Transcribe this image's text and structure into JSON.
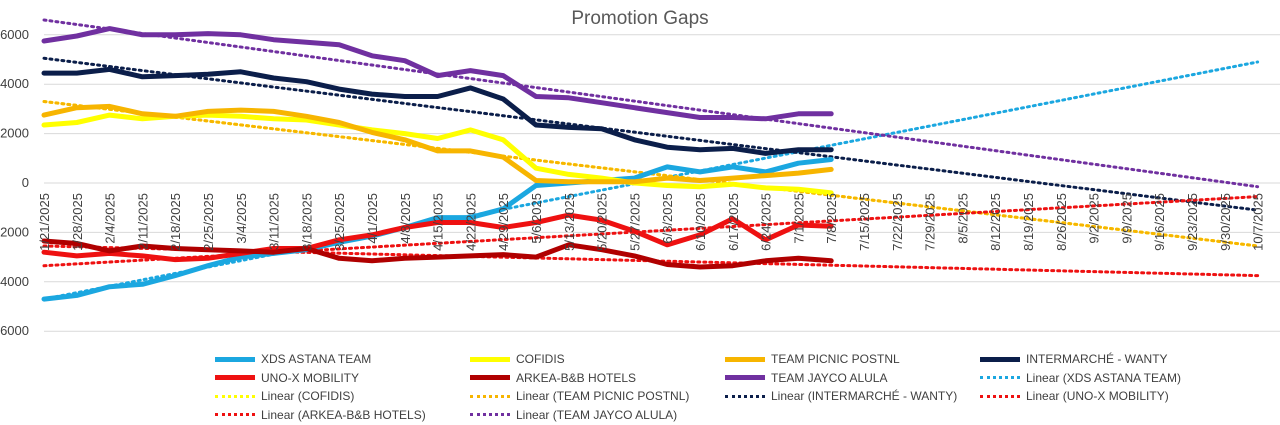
{
  "chart_data": {
    "type": "line",
    "title": "Promotion Gaps",
    "x_ticks": [
      "1/21/2025",
      "1/28/2025",
      "2/4/2025",
      "2/11/2025",
      "2/18/2025",
      "2/25/2025",
      "3/4/2025",
      "3/11/2025",
      "3/18/2025",
      "3/25/2025",
      "4/1/2025",
      "4/8/2025",
      "4/15/2025",
      "4/22/2025",
      "4/29/2025",
      "5/6/2025",
      "5/13/2025",
      "5/20/2025",
      "5/27/2025",
      "6/3/2025",
      "6/10/2025",
      "6/17/2025",
      "6/24/2025",
      "7/1/2025",
      "7/8/2025",
      "7/15/2025",
      "7/22/2025",
      "7/29/2025",
      "8/5/2025",
      "8/12/2025",
      "8/19/2025",
      "8/26/2025",
      "9/2/2025",
      "9/9/2025",
      "9/16/2025",
      "9/23/2025",
      "9/30/2025",
      "10/7/2025"
    ],
    "y_ticks": [
      "6000",
      "4000",
      "2000",
      "0",
      "2000",
      "4000",
      "6000"
    ],
    "y_tick_values": [
      6000,
      4000,
      2000,
      0,
      -2000,
      -4000,
      -6000
    ],
    "ylim": [
      -6000,
      6500
    ],
    "grid": true,
    "legend_position": "bottom",
    "series": [
      {
        "name": "XDS ASTANA TEAM",
        "style": "solid",
        "color": "#1ba7e0",
        "values": [
          -4700,
          -4550,
          -4200,
          -4100,
          -3750,
          -3350,
          -3000,
          -2850,
          -2700,
          -2400,
          -2150,
          -1800,
          -1400,
          -1400,
          -1050,
          -100,
          0,
          100,
          200,
          650,
          450,
          650,
          450,
          800,
          950
        ]
      },
      {
        "name": "COFIDIS",
        "style": "solid",
        "color": "#ffff00",
        "values": [
          2350,
          2450,
          2750,
          2600,
          2700,
          2750,
          2700,
          2600,
          2550,
          2350,
          2150,
          2000,
          1800,
          2150,
          1750,
          600,
          350,
          200,
          0,
          -100,
          -150,
          -50,
          -200,
          -250,
          -400
        ]
      },
      {
        "name": "TEAM PICNIC POSTNL",
        "style": "solid",
        "color": "#f7b500",
        "values": [
          2750,
          3050,
          3100,
          2800,
          2700,
          2900,
          2950,
          2900,
          2700,
          2450,
          2050,
          1750,
          1300,
          1300,
          1050,
          100,
          50,
          50,
          50,
          200,
          100,
          200,
          300,
          400,
          550
        ]
      },
      {
        "name": "INTERMARCHÉ - WANTY",
        "style": "solid",
        "color": "#0b1e4a",
        "values": [
          4450,
          4450,
          4600,
          4300,
          4350,
          4400,
          4500,
          4250,
          4100,
          3800,
          3600,
          3500,
          3500,
          3850,
          3400,
          2350,
          2250,
          2200,
          1750,
          1450,
          1350,
          1400,
          1200,
          1350,
          1350
        ]
      },
      {
        "name": "UNO-X MOBILITY",
        "style": "solid",
        "color": "#ee1111",
        "values": [
          -2800,
          -2950,
          -2850,
          -2950,
          -3100,
          -3050,
          -2850,
          -2650,
          -2650,
          -2300,
          -2100,
          -1800,
          -1600,
          -1600,
          -1800,
          -1600,
          -1300,
          -1500,
          -1950,
          -2500,
          -2100,
          -1450,
          -2300,
          -1700,
          -1750
        ]
      },
      {
        "name": "ARKEA-B&B HOTELS",
        "style": "solid",
        "color": "#b00000",
        "values": [
          -2350,
          -2450,
          -2750,
          -2550,
          -2650,
          -2700,
          -2750,
          -2800,
          -2650,
          -3050,
          -3150,
          -3050,
          -3000,
          -2950,
          -2900,
          -3000,
          -2500,
          -2700,
          -2950,
          -3300,
          -3400,
          -3350,
          -3150,
          -3050,
          -3150
        ]
      },
      {
        "name": "TEAM JAYCO ALULA",
        "style": "solid",
        "color": "#7030a0",
        "values": [
          5750,
          5950,
          6250,
          6000,
          6000,
          6050,
          6000,
          5800,
          5700,
          5600,
          5150,
          4950,
          4350,
          4550,
          4350,
          3500,
          3450,
          3250,
          3050,
          2850,
          2650,
          2650,
          2600,
          2800,
          2800
        ]
      }
    ],
    "trendlines": [
      {
        "name": "Linear (XDS ASTANA TEAM)",
        "style": "dotted",
        "color": "#1ba7e0",
        "start": [
          0,
          -4700
        ],
        "end": [
          37,
          4900
        ]
      },
      {
        "name": "Linear (COFIDIS)",
        "style": "dotted",
        "color": "#ffff00",
        "start": [
          0,
          3300
        ],
        "end": [
          37,
          -2550
        ]
      },
      {
        "name": "Linear (TEAM PICNIC POSTNL)",
        "style": "dotted",
        "color": "#f7b500",
        "start": [
          0,
          3300
        ],
        "end": [
          37,
          -2550
        ]
      },
      {
        "name": "Linear (INTERMARCHÉ - WANTY)",
        "style": "dotted",
        "color": "#0b1e4a",
        "start": [
          0,
          5050
        ],
        "end": [
          37,
          -1100
        ]
      },
      {
        "name": "Linear (UNO-X MOBILITY)",
        "style": "dotted",
        "color": "#ee1111",
        "start": [
          0,
          -3350
        ],
        "end": [
          37,
          -550
        ]
      },
      {
        "name": "Linear (ARKEA-B&B HOTELS)",
        "style": "dotted",
        "color": "#ee1111",
        "start": [
          0,
          -2550
        ],
        "end": [
          37,
          -3750
        ]
      },
      {
        "name": "Linear (TEAM JAYCO ALULA)",
        "style": "dotted",
        "color": "#7030a0",
        "start": [
          0,
          6600
        ],
        "end": [
          37,
          -150
        ]
      }
    ]
  },
  "legend": [
    {
      "label": "XDS ASTANA TEAM",
      "style": "solid",
      "color": "#1ba7e0"
    },
    {
      "label": "COFIDIS",
      "style": "solid",
      "color": "#ffff00"
    },
    {
      "label": "TEAM PICNIC POSTNL",
      "style": "solid",
      "color": "#f7b500"
    },
    {
      "label": "INTERMARCHÉ - WANTY",
      "style": "solid",
      "color": "#0b1e4a"
    },
    {
      "label": "UNO-X MOBILITY",
      "style": "solid",
      "color": "#ee1111"
    },
    {
      "label": "ARKEA-B&B HOTELS",
      "style": "solid",
      "color": "#b00000"
    },
    {
      "label": "TEAM JAYCO ALULA",
      "style": "solid",
      "color": "#7030a0"
    },
    {
      "label": "Linear (XDS ASTANA TEAM)",
      "style": "dotted",
      "color": "#1ba7e0"
    },
    {
      "label": "Linear (COFIDIS)",
      "style": "dotted",
      "color": "#ffff00"
    },
    {
      "label": "Linear (TEAM PICNIC POSTNL)",
      "style": "dotted",
      "color": "#f7b500"
    },
    {
      "label": "Linear (INTERMARCHÉ - WANTY)",
      "style": "dotted",
      "color": "#0b1e4a"
    },
    {
      "label": "Linear (UNO-X MOBILITY)",
      "style": "dotted",
      "color": "#ee1111"
    },
    {
      "label": "Linear (ARKEA-B&B HOTELS)",
      "style": "dotted",
      "color": "#ee1111"
    },
    {
      "label": "Linear (TEAM JAYCO ALULA)",
      "style": "dotted",
      "color": "#7030a0"
    }
  ]
}
